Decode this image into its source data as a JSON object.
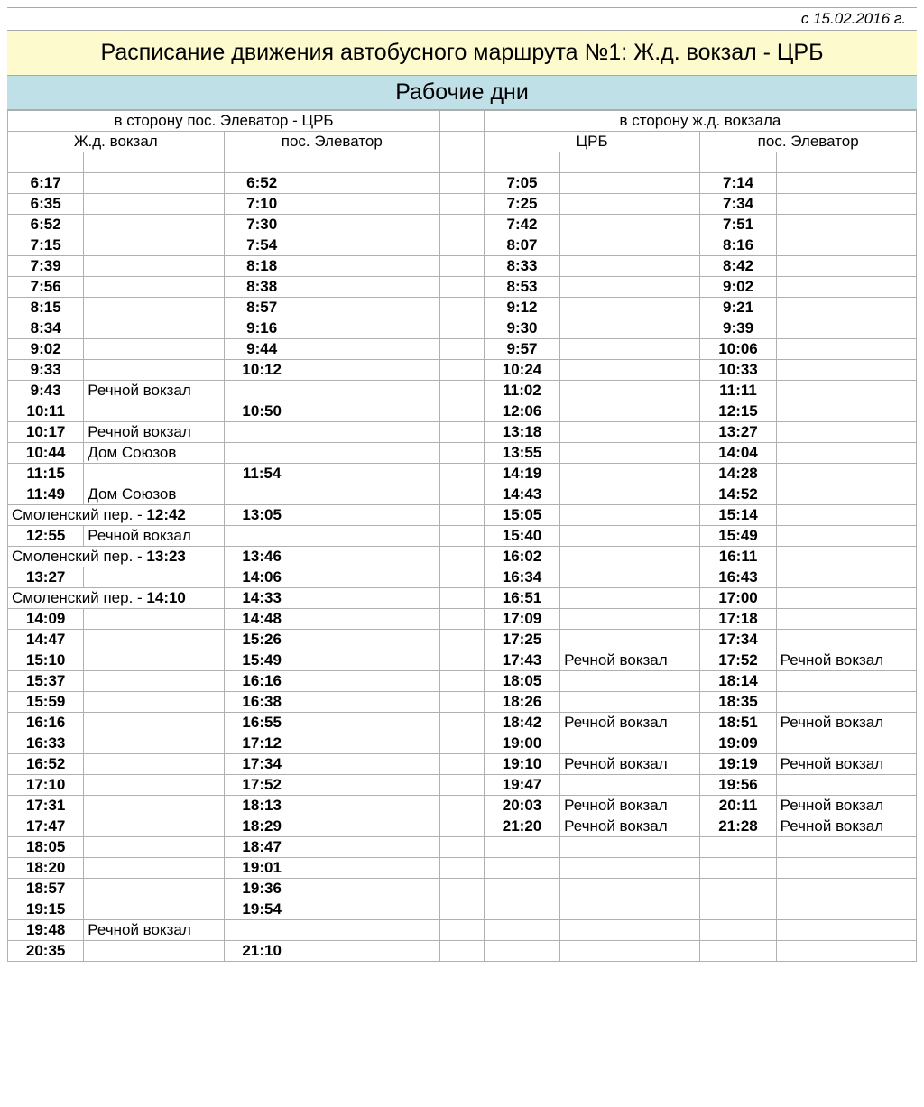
{
  "date_label": "с 15.02.2016 г.",
  "title": "Расписание движения автобусного маршрута №1: Ж.д. вокзал - ЦРБ",
  "subtitle": "Рабочие дни",
  "dir_left": "в сторону пос. Элеватор - ЦРБ",
  "dir_right": "в сторону ж.д. вокзала",
  "stops_left": [
    "Ж.д. вокзал",
    "пос. Элеватор"
  ],
  "stops_right": [
    "ЦРБ",
    "пос. Элеватор"
  ],
  "colors": {
    "title_bg": "#fdfacd",
    "subtitle_bg": "#c0e0e8",
    "border": "#b0b0b0"
  },
  "rows": [
    {
      "l1": "6:17",
      "n1": "",
      "l2": "6:52",
      "n2": "",
      "r1": "7:05",
      "m1": "",
      "r2": "7:14",
      "m2": ""
    },
    {
      "l1": "6:35",
      "n1": "",
      "l2": "7:10",
      "n2": "",
      "r1": "7:25",
      "m1": "",
      "r2": "7:34",
      "m2": ""
    },
    {
      "l1": "6:52",
      "n1": "",
      "l2": "7:30",
      "n2": "",
      "r1": "7:42",
      "m1": "",
      "r2": "7:51",
      "m2": ""
    },
    {
      "l1": "7:15",
      "n1": "",
      "l2": "7:54",
      "n2": "",
      "r1": "8:07",
      "m1": "",
      "r2": "8:16",
      "m2": ""
    },
    {
      "l1": "7:39",
      "n1": "",
      "l2": "8:18",
      "n2": "",
      "r1": "8:33",
      "m1": "",
      "r2": "8:42",
      "m2": ""
    },
    {
      "l1": "7:56",
      "n1": "",
      "l2": "8:38",
      "n2": "",
      "r1": "8:53",
      "m1": "",
      "r2": "9:02",
      "m2": ""
    },
    {
      "l1": "8:15",
      "n1": "",
      "l2": "8:57",
      "n2": "",
      "r1": "9:12",
      "m1": "",
      "r2": "9:21",
      "m2": ""
    },
    {
      "l1": "8:34",
      "n1": "",
      "l2": "9:16",
      "n2": "",
      "r1": "9:30",
      "m1": "",
      "r2": "9:39",
      "m2": ""
    },
    {
      "l1": "9:02",
      "n1": "",
      "l2": "9:44",
      "n2": "",
      "r1": "9:57",
      "m1": "",
      "r2": "10:06",
      "m2": ""
    },
    {
      "l1": "9:33",
      "n1": "",
      "l2": "10:12",
      "n2": "",
      "r1": "10:24",
      "m1": "",
      "r2": "10:33",
      "m2": ""
    },
    {
      "l1": "9:43",
      "n1": "Речной вокзал",
      "l2": "",
      "n2": "",
      "r1": "11:02",
      "m1": "",
      "r2": "11:11",
      "m2": ""
    },
    {
      "l1": "10:11",
      "n1": "",
      "l2": "10:50",
      "n2": "",
      "r1": "12:06",
      "m1": "",
      "r2": "12:15",
      "m2": ""
    },
    {
      "l1": "10:17",
      "n1": "Речной вокзал",
      "l2": "",
      "n2": "",
      "r1": "13:18",
      "m1": "",
      "r2": "13:27",
      "m2": ""
    },
    {
      "l1": "10:44",
      "n1": "Дом Союзов",
      "l2": "",
      "n2": "",
      "r1": "13:55",
      "m1": "",
      "r2": "14:04",
      "m2": ""
    },
    {
      "l1": "11:15",
      "n1": "",
      "l2": "11:54",
      "n2": "",
      "r1": "14:19",
      "m1": "",
      "r2": "14:28",
      "m2": ""
    },
    {
      "l1": "11:49",
      "n1": "Дом Союзов",
      "l2": "",
      "n2": "",
      "r1": "14:43",
      "m1": "",
      "r2": "14:52",
      "m2": ""
    },
    {
      "merged_l": "Смоленский пер. - ",
      "merged_t": "12:42",
      "l2": "13:05",
      "n2": "",
      "r1": "15:05",
      "m1": "",
      "r2": "15:14",
      "m2": ""
    },
    {
      "l1": "12:55",
      "n1": "Речной вокзал",
      "l2": "",
      "n2": "",
      "r1": "15:40",
      "m1": "",
      "r2": "15:49",
      "m2": ""
    },
    {
      "merged_l": "Смоленский пер. - ",
      "merged_t": "13:23",
      "l2": "13:46",
      "n2": "",
      "r1": "16:02",
      "m1": "",
      "r2": "16:11",
      "m2": ""
    },
    {
      "l1": "13:27",
      "n1": "",
      "l2": "14:06",
      "n2": "",
      "r1": "16:34",
      "m1": "",
      "r2": "16:43",
      "m2": ""
    },
    {
      "merged_l": "Смоленский пер. - ",
      "merged_t": "14:10",
      "l2": "14:33",
      "n2": "",
      "r1": "16:51",
      "m1": "",
      "r2": "17:00",
      "m2": ""
    },
    {
      "l1": "14:09",
      "n1": "",
      "l2": "14:48",
      "n2": "",
      "r1": "17:09",
      "m1": "",
      "r2": "17:18",
      "m2": ""
    },
    {
      "l1": "14:47",
      "n1": "",
      "l2": "15:26",
      "n2": "",
      "r1": "17:25",
      "m1": "",
      "r2": "17:34",
      "m2": ""
    },
    {
      "l1": "15:10",
      "n1": "",
      "l2": "15:49",
      "n2": "",
      "r1": "17:43",
      "m1": "Речной вокзал",
      "r2": "17:52",
      "m2": "Речной вокзал"
    },
    {
      "l1": "15:37",
      "n1": "",
      "l2": "16:16",
      "n2": "",
      "r1": "18:05",
      "m1": "",
      "r2": "18:14",
      "m2": ""
    },
    {
      "l1": "15:59",
      "n1": "",
      "l2": "16:38",
      "n2": "",
      "r1": "18:26",
      "m1": "",
      "r2": "18:35",
      "m2": ""
    },
    {
      "l1": "16:16",
      "n1": "",
      "l2": "16:55",
      "n2": "",
      "r1": "18:42",
      "m1": "Речной вокзал",
      "r2": "18:51",
      "m2": "Речной вокзал"
    },
    {
      "l1": "16:33",
      "n1": "",
      "l2": "17:12",
      "n2": "",
      "r1": "19:00",
      "m1": "",
      "r2": "19:09",
      "m2": ""
    },
    {
      "l1": "16:52",
      "n1": "",
      "l2": "17:34",
      "n2": "",
      "r1": "19:10",
      "m1": "Речной вокзал",
      "r2": "19:19",
      "m2": "Речной вокзал"
    },
    {
      "l1": "17:10",
      "n1": "",
      "l2": "17:52",
      "n2": "",
      "r1": "19:47",
      "m1": "",
      "r2": "19:56",
      "m2": ""
    },
    {
      "l1": "17:31",
      "n1": "",
      "l2": "18:13",
      "n2": "",
      "r1": "20:03",
      "m1": "Речной вокзал",
      "r2": "20:11",
      "m2": "Речной вокзал"
    },
    {
      "l1": "17:47",
      "n1": "",
      "l2": "18:29",
      "n2": "",
      "r1": "21:20",
      "m1": "Речной вокзал",
      "r2": "21:28",
      "m2": "Речной вокзал"
    },
    {
      "l1": "18:05",
      "n1": "",
      "l2": "18:47",
      "n2": "",
      "r1": "",
      "m1": "",
      "r2": "",
      "m2": ""
    },
    {
      "l1": "18:20",
      "n1": "",
      "l2": "19:01",
      "n2": "",
      "r1": "",
      "m1": "",
      "r2": "",
      "m2": ""
    },
    {
      "l1": "18:57",
      "n1": "",
      "l2": "19:36",
      "n2": "",
      "r1": "",
      "m1": "",
      "r2": "",
      "m2": ""
    },
    {
      "l1": "19:15",
      "n1": "",
      "l2": "19:54",
      "n2": "",
      "r1": "",
      "m1": "",
      "r2": "",
      "m2": ""
    },
    {
      "l1": "19:48",
      "n1": "Речной вокзал",
      "l2": "",
      "n2": "",
      "r1": "",
      "m1": "",
      "r2": "",
      "m2": ""
    },
    {
      "l1": "20:35",
      "n1": "",
      "l2": "21:10",
      "n2": "",
      "r1": "",
      "m1": "",
      "r2": "",
      "m2": ""
    }
  ]
}
